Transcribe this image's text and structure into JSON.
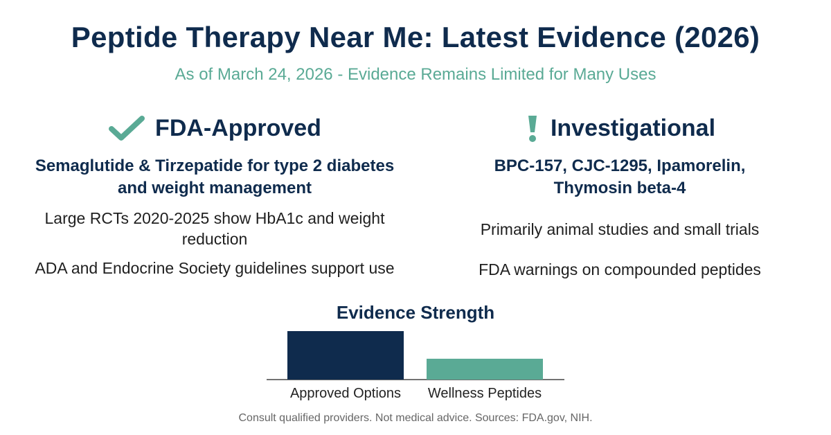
{
  "title": "Peptide Therapy Near Me: Latest Evidence (2026)",
  "subtitle": "As of March 24, 2026 - Evidence Remains Limited for Many Uses",
  "colors": {
    "navy": "#0f2b4d",
    "teal": "#5aaa95"
  },
  "left": {
    "icon": "checkmark-icon",
    "heading": "FDA-Approved",
    "subheading": "Semaglutide & Tirzepatide for type 2 diabetes and weight management",
    "bullets": [
      "Large RCTs 2020-2025 show HbA1c and weight reduction",
      "ADA and Endocrine Society guidelines support use"
    ]
  },
  "right": {
    "icon": "exclamation-icon",
    "heading": "Investigational",
    "subheading": "BPC-157, CJC-1295, Ipamorelin, Thymosin beta-4",
    "bullets": [
      "Primarily animal studies and small trials",
      "FDA warnings on compounded peptides"
    ]
  },
  "chart_data": {
    "type": "bar",
    "title": "Evidence Strength",
    "categories": [
      "Approved Options",
      "Wellness Peptides"
    ],
    "values": [
      100,
      43
    ],
    "ylim": [
      0,
      100
    ],
    "colors": [
      "#0f2b4d",
      "#5aaa95"
    ],
    "grid": false
  },
  "footer": "Consult qualified providers. Not medical advice. Sources: FDA.gov, NIH."
}
